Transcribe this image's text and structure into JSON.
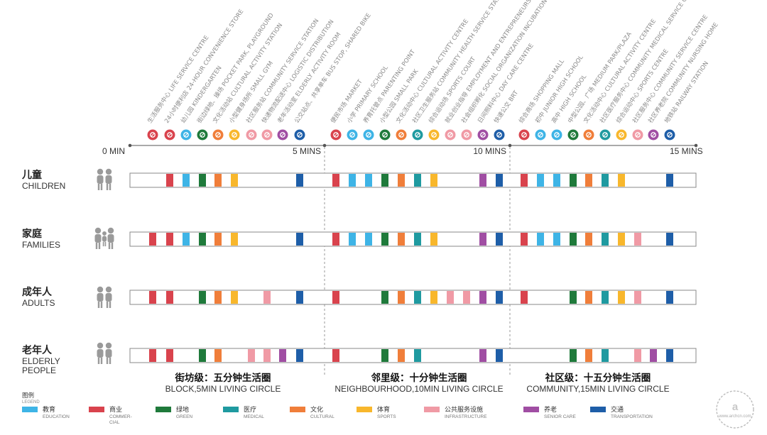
{
  "ticks": [
    "0 MIN",
    "5 MINS",
    "10 MINS",
    "15 MINS"
  ],
  "facilities": [
    {
      "label": "生活服务中心 LIFE SERVICE CENTRE",
      "icon": "shopping-cart-icon",
      "color": "#d9434d"
    },
    {
      "label": "24小时便利店 24-HOUR CONVENIENCE STORE",
      "icon": "24h-icon",
      "color": "#d9434d"
    },
    {
      "label": "幼儿园 KINDERGARTEN",
      "icon": "child-icon",
      "color": "#3eb4e6"
    },
    {
      "label": "街边绿地、操场 POCKET PARK, PLAYGROUND",
      "icon": "park-icon",
      "color": "#1f7a3b"
    },
    {
      "label": "文化活动站 CULTURAL ACTIVITY STATION",
      "icon": "culture-icon",
      "color": "#f07e3a"
    },
    {
      "label": "小型健身场所 SMALL GYM",
      "icon": "fitness-icon",
      "color": "#f8b72c"
    },
    {
      "label": "社区服务站 COMMUNITY SERVICE STATION",
      "icon": "service-icon",
      "color": "#f09aa5"
    },
    {
      "label": "快递物流配送中心 LOGISTIC DISTRIBUTION",
      "icon": "delivery-icon",
      "color": "#f09aa5"
    },
    {
      "label": "老年活动室 ELDERLY ACTIVITY ROOM",
      "icon": "elderly-icon",
      "color": "#a04ea3"
    },
    {
      "label": "公交站点、共享单车 BUS STOP, SHARED BIKE",
      "icon": "bus-icon",
      "color": "#1e5ea8"
    },
    {
      "label": "便民市场 MARKET",
      "icon": "market-icon",
      "color": "#d9434d"
    },
    {
      "label": "小学 PRIMARY SCHOOL",
      "icon": "school-icon",
      "color": "#3eb4e6"
    },
    {
      "label": "养育托管点 PARENTING POINT",
      "icon": "baby-icon",
      "color": "#3eb4e6"
    },
    {
      "label": "小型公园 SMALL PARK",
      "icon": "tree-icon",
      "color": "#1f7a3b"
    },
    {
      "label": "文化活动中心 CULTURAL ACTIVITY CENTRE",
      "icon": "heart-icon",
      "color": "#f07e3a"
    },
    {
      "label": "社区卫生服务站 COMMUNITY HEALTH SERVICE STATION",
      "icon": "medical-icon",
      "color": "#1f9aa0"
    },
    {
      "label": "综合运动场 SPORTS COURT",
      "icon": "sports-icon",
      "color": "#f8b72c"
    },
    {
      "label": "就业创业指导 EMPLOYMENT AND ENTREPRENEURSHIP GUIDANCE",
      "icon": "job-icon",
      "color": "#f09aa5"
    },
    {
      "label": "社会组织孵化 SOCIAL ORGANIZATION INCUBATION",
      "icon": "org-icon",
      "color": "#f09aa5"
    },
    {
      "label": "日间照料中心 DAY CARE CENTRE",
      "icon": "daycare-icon",
      "color": "#a04ea3"
    },
    {
      "label": "快速公交 BRT",
      "icon": "brt-icon",
      "color": "#1e5ea8"
    },
    {
      "label": "综合商场 SHOPPING MALL",
      "icon": "mall-icon",
      "color": "#d9434d"
    },
    {
      "label": "初中 JUNIOR HIGH SCHOOL",
      "icon": "book-icon",
      "color": "#3eb4e6"
    },
    {
      "label": "高中 HIGH SCHOOL",
      "icon": "graduation-icon",
      "color": "#3eb4e6"
    },
    {
      "label": "中型公园、广场 MEDIUM PARK/PLAZA",
      "icon": "plaza-icon",
      "color": "#1f7a3b"
    },
    {
      "label": "文化活动中心 CULTURAL ACTIVITY CENTRE",
      "icon": "museum-icon",
      "color": "#f07e3a"
    },
    {
      "label": "社区医疗服务中心 COMMUNITY MEDICAL SERVICE CENTRE",
      "icon": "cross-icon",
      "color": "#1f9aa0"
    },
    {
      "label": "综合运动中心 SPORTS CENTRE",
      "icon": "runner-icon",
      "color": "#f8b72c"
    },
    {
      "label": "社区服务中心 COMMUNITY SERVICE CENTRE",
      "icon": "people-icon",
      "color": "#f09aa5"
    },
    {
      "label": "社区养老院 COMMUNITY NURSING HOME",
      "icon": "nursing-icon",
      "color": "#a04ea3"
    },
    {
      "label": "地铁站 RAILWAY STATION",
      "icon": "metro-icon",
      "color": "#1e5ea8"
    }
  ],
  "groups": [
    {
      "cn": "儿童",
      "en": [
        "CHILDREN"
      ],
      "icon": "children-icon",
      "slots": [
        1,
        2,
        3,
        4,
        5,
        9,
        10,
        11,
        12,
        13,
        14,
        15,
        16,
        19,
        20,
        21,
        22,
        23,
        24,
        25,
        26,
        27,
        30
      ]
    },
    {
      "cn": "家庭",
      "en": [
        "FAMILIES"
      ],
      "icon": "family-icon",
      "slots": [
        0,
        1,
        2,
        3,
        4,
        5,
        9,
        10,
        11,
        12,
        13,
        14,
        15,
        16,
        19,
        20,
        21,
        22,
        23,
        24,
        25,
        26,
        27,
        28,
        30
      ]
    },
    {
      "cn": "成年人",
      "en": [
        "ADULTS"
      ],
      "icon": "adults-icon",
      "slots": [
        0,
        1,
        3,
        4,
        5,
        7,
        9,
        10,
        13,
        14,
        15,
        16,
        17,
        18,
        19,
        20,
        21,
        24,
        25,
        26,
        27,
        28,
        30
      ]
    },
    {
      "cn": "老年人",
      "en": [
        "ELDERLY",
        "PEOPLE"
      ],
      "icon": "elderly-people-icon",
      "slots": [
        0,
        1,
        3,
        4,
        6,
        7,
        8,
        9,
        10,
        13,
        14,
        15,
        19,
        20,
        24,
        25,
        26,
        28,
        29,
        30
      ]
    }
  ],
  "circles": [
    {
      "cn": "街坊级：五分钟生活圈",
      "en": "BLOCK,5MIN LIVING CIRCLE"
    },
    {
      "cn": "邻里级：十分钟生活圈",
      "en": "NEIGHBOURHOOD,10MIN LIVING CIRCLE"
    },
    {
      "cn": "社区级：十五分钟生活圈",
      "en": "COMMUNITY,15MIN LIVING CIRCLE"
    }
  ],
  "legend": {
    "title_cn": "图例",
    "title_en": "LEGEND",
    "items": [
      {
        "cn": "教育",
        "en": [
          "EDUCATION"
        ],
        "color": "#3eb4e6"
      },
      {
        "cn": "商业",
        "en": [
          "COMMER-",
          "CIAL"
        ],
        "color": "#d9434d"
      },
      {
        "cn": "绿地",
        "en": [
          "GREEN"
        ],
        "color": "#1f7a3b"
      },
      {
        "cn": "医疗",
        "en": [
          "MEDICAL"
        ],
        "color": "#1f9aa0"
      },
      {
        "cn": "文化",
        "en": [
          "CULTURAL"
        ],
        "color": "#f07e3a"
      },
      {
        "cn": "体育",
        "en": [
          "SPORTS"
        ],
        "color": "#f8b72c"
      },
      {
        "cn": "公共服务设施",
        "en": [
          "INFRASTRUCTURE"
        ],
        "color": "#f09aa5"
      },
      {
        "cn": "养老",
        "en": [
          "SENIOR CARE"
        ],
        "color": "#a04ea3"
      },
      {
        "cn": "交通",
        "en": [
          "TRANSPORTATION"
        ],
        "color": "#1e5ea8"
      }
    ]
  },
  "watermark": "www.archcn.com"
}
